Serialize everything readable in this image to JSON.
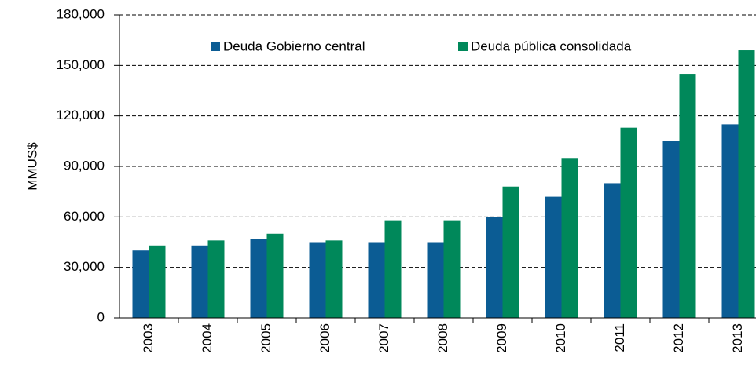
{
  "chart_data": {
    "type": "bar",
    "y_label": "MMUS$",
    "categories": [
      "2003",
      "2004",
      "2005",
      "2006",
      "2007",
      "2008",
      "2009",
      "2010",
      "2011",
      "2012",
      "2013"
    ],
    "series": [
      {
        "name": "Deuda Gobierno central",
        "color": "#0b5c94",
        "values": [
          40000,
          43000,
          47000,
          45000,
          45000,
          45000,
          60000,
          72000,
          80000,
          105000,
          115000
        ]
      },
      {
        "name": "Deuda pública consolidada",
        "color": "#00885a",
        "values": [
          43000,
          46000,
          50000,
          46000,
          58000,
          58000,
          78000,
          95000,
          113000,
          145000,
          159000
        ]
      }
    ],
    "ylim": [
      0,
      180000
    ],
    "yticks": [
      0,
      {
        "value": 30000,
        "label": "30,000"
      },
      {
        "value": 60000,
        "label": "60,000"
      },
      {
        "value": 90000,
        "label": "90,000"
      },
      {
        "value": 120000,
        "label": "120,000"
      },
      {
        "value": 150000,
        "label": "150,000"
      },
      {
        "value": 180000,
        "label": "180,000"
      }
    ],
    "grid": true,
    "legend": "top"
  }
}
